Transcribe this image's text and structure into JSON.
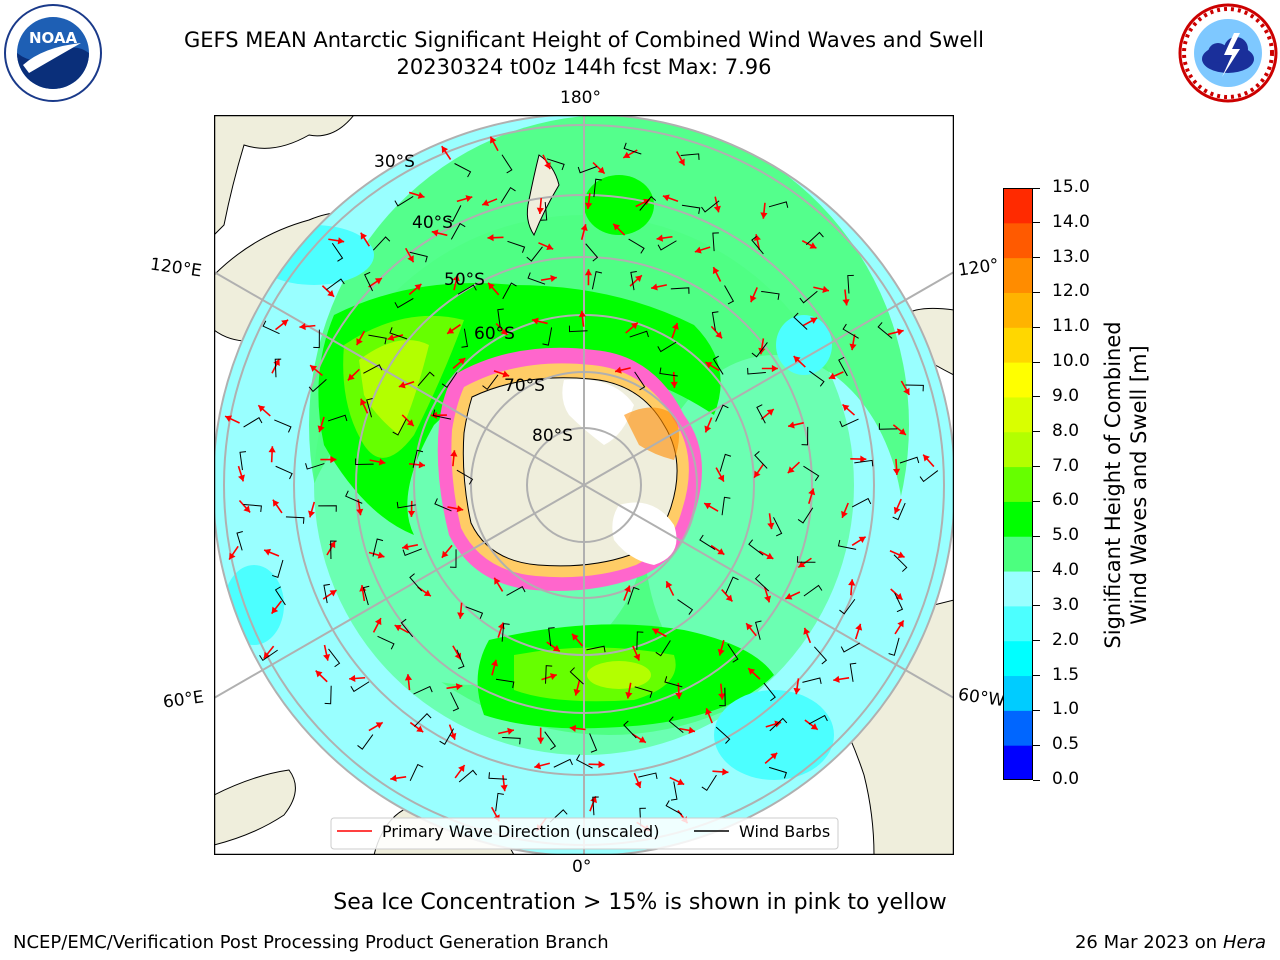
{
  "title_line1": "GEFS MEAN Antarctic Significant Height of Combined Wind Waves and Swell",
  "title_line2": "20230324 t00z 144h fcst   Max: 7.96",
  "lon_labels": {
    "top": "180°",
    "bottom": "0°",
    "upper_left": "120°E",
    "lower_left": "60°E",
    "upper_right": "120°",
    "lower_right": "60°W"
  },
  "lat_labels": [
    "30°S",
    "40°S",
    "50°S",
    "60°S",
    "70°S",
    "80°S"
  ],
  "legend": {
    "wave_label": "Primary Wave Direction (unscaled)",
    "barb_label": "Wind Barbs",
    "wave_color": "#ff0000",
    "barb_color": "#000000"
  },
  "colorbar": {
    "label_line1": "Significant Height of Combined",
    "label_line2": "Wind Waves and Swell [m]",
    "levels": [
      "0.0",
      "0.5",
      "1.0",
      "1.5",
      "2.0",
      "3.0",
      "4.0",
      "5.0",
      "6.0",
      "7.0",
      "8.0",
      "9.0",
      "10.0",
      "11.0",
      "12.0",
      "13.0",
      "14.0",
      "15.0"
    ],
    "colors": [
      "#0000ff",
      "#0066ff",
      "#00ccff",
      "#00ffff",
      "#4cffff",
      "#99ffff",
      "#4cff7f",
      "#00ff00",
      "#66ff00",
      "#b3ff00",
      "#d9ff00",
      "#ffff00",
      "#ffd700",
      "#ffb300",
      "#ff8c00",
      "#ff5a00",
      "#ff2a00"
    ]
  },
  "footer_ice": "Sea Ice Concentration > 15% is shown in pink to yellow",
  "footer_left": "NCEP/EMC/Verification Post Processing Product Generation Branch",
  "footer_right_date": "26 Mar 2023 on",
  "footer_right_host": "Hera",
  "chart_data": {
    "type": "heatmap",
    "projection": "south polar stereographic",
    "variable": "Significant Height of Combined Wind Waves and Swell [m]",
    "max": 7.96,
    "color_range": [
      0,
      15
    ]
  }
}
